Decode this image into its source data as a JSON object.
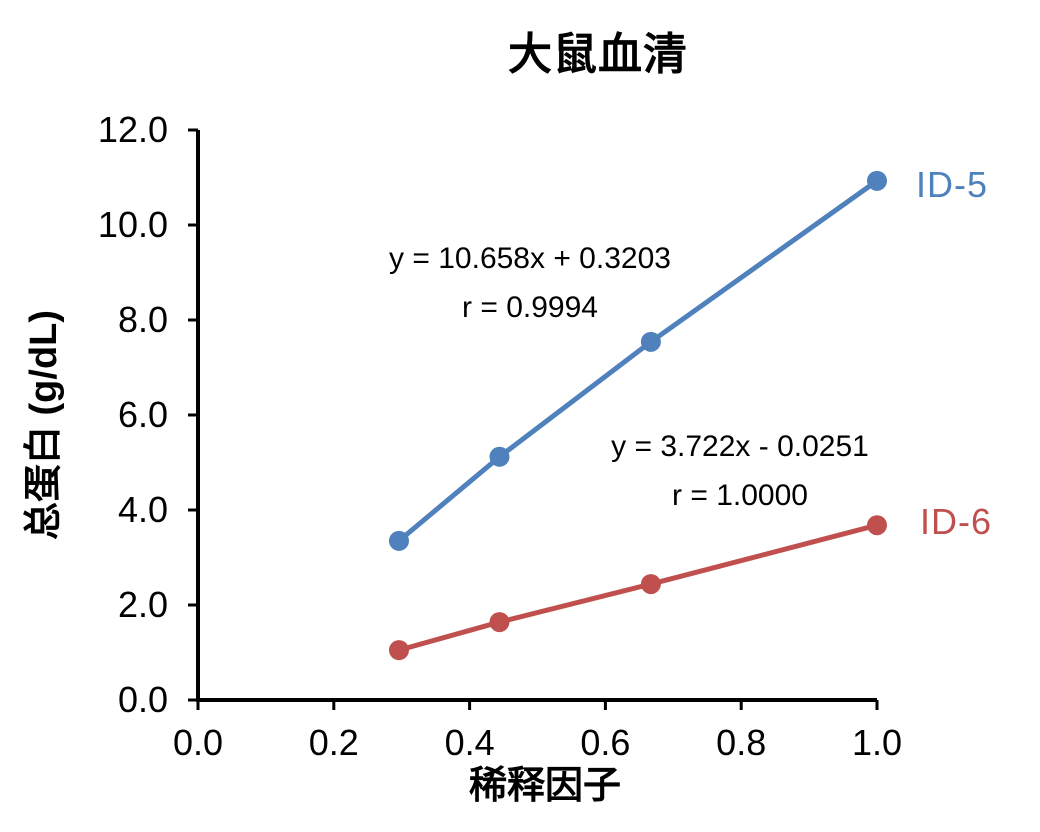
{
  "chart_data": {
    "type": "line",
    "title": "大鼠血清",
    "xlabel": "稀释因子",
    "ylabel": "总蛋白 (g/dL)",
    "xlim": [
      0.0,
      1.0
    ],
    "ylim": [
      0.0,
      12.0
    ],
    "x_ticks": [
      0.0,
      0.2,
      0.4,
      0.6,
      0.8,
      1.0
    ],
    "y_ticks": [
      0.0,
      2.0,
      4.0,
      6.0,
      8.0,
      10.0,
      12.0
    ],
    "tick_decimals": 1,
    "grid": false,
    "legend_position": "right-of-line-ends",
    "axis_color": "#000000",
    "background_color": "#ffffff",
    "x": [
      0.296,
      0.444,
      0.667,
      1.0
    ],
    "series": [
      {
        "name": "ID-5",
        "color": "#4F81BD",
        "values": [
          3.35,
          5.12,
          7.54,
          10.93
        ],
        "equation": "y = 10.658x + 0.3203",
        "r": "r = 0.9994"
      },
      {
        "name": "ID-6",
        "color": "#C0504D",
        "values": [
          1.05,
          1.64,
          2.44,
          3.68
        ],
        "equation": "y = 3.722x - 0.0251",
        "r": "r = 1.0000"
      }
    ]
  }
}
